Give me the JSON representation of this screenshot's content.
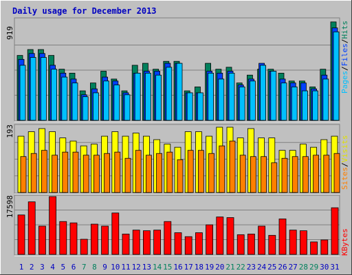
{
  "title": "Daily usage for December 2013",
  "colors": {
    "background": "#c0c0c0",
    "panel": "#c0c0c0",
    "gridline": "#808080",
    "title": "#0000c0",
    "hits": "#00805c",
    "files": "#0040ff",
    "pages": "#00c0ff",
    "visits": "#ffff00",
    "sites": "#ff8000",
    "kbytes": "#ff0000",
    "weekday_label": "#0000c0",
    "weekend_label": "#00805c"
  },
  "panels": {
    "hits_files_pages": {
      "max_label": "919",
      "legend": {
        "pages": "Pages",
        "sep1": "/",
        "files": "Files",
        "sep2": "/",
        "hits": "Hits"
      }
    },
    "visits_sites": {
      "max_label": "193",
      "legend": {
        "sites": "Sites",
        "sep": "/",
        "visits": "Visits"
      }
    },
    "kbytes": {
      "max_label": "17598",
      "legend": {
        "kbytes": "KBytes"
      }
    }
  },
  "chart_data": [
    {
      "type": "bar",
      "title": "Daily usage for December 2013",
      "categories": [
        "1",
        "2",
        "3",
        "4",
        "5",
        "6",
        "7",
        "8",
        "9",
        "10",
        "11",
        "12",
        "13",
        "14",
        "15",
        "16",
        "17",
        "18",
        "19",
        "20",
        "21",
        "22",
        "23",
        "24",
        "25",
        "26",
        "27",
        "28",
        "29",
        "30",
        "31"
      ],
      "weekend_days": [
        "7",
        "8",
        "14",
        "15",
        "21",
        "22",
        "28",
        "29"
      ],
      "ylim": [
        0,
        919
      ],
      "series": [
        {
          "name": "Hits",
          "values": [
            594,
            648,
            648,
            594,
            468,
            432,
            270,
            342,
            450,
            378,
            270,
            504,
            522,
            468,
            540,
            540,
            270,
            306,
            522,
            468,
            486,
            342,
            414,
            468,
            468,
            432,
            360,
            360,
            306,
            468,
            901
          ]
        },
        {
          "name": "Files",
          "values": [
            558,
            612,
            612,
            504,
            432,
            378,
            234,
            288,
            396,
            360,
            252,
            432,
            450,
            450,
            522,
            522,
            252,
            252,
            450,
            432,
            450,
            324,
            378,
            522,
            450,
            378,
            342,
            342,
            288,
            414,
            846
          ]
        },
        {
          "name": "Pages",
          "values": [
            504,
            576,
            576,
            468,
            396,
            342,
            216,
            252,
            360,
            324,
            234,
            432,
            432,
            414,
            486,
            522,
            252,
            252,
            432,
            378,
            432,
            306,
            360,
            504,
            450,
            342,
            306,
            270,
            270,
            378,
            810
          ]
        }
      ]
    },
    {
      "type": "bar",
      "categories": [
        "1",
        "2",
        "3",
        "4",
        "5",
        "6",
        "7",
        "8",
        "9",
        "10",
        "11",
        "12",
        "13",
        "14",
        "15",
        "16",
        "17",
        "18",
        "19",
        "20",
        "21",
        "22",
        "23",
        "24",
        "25",
        "26",
        "27",
        "28",
        "29",
        "30",
        "31"
      ],
      "ylim": [
        0,
        193
      ],
      "series": [
        {
          "name": "Visits",
          "values": [
            163,
            176,
            185,
            176,
            158,
            149,
            135,
            140,
            163,
            176,
            163,
            172,
            163,
            153,
            140,
            131,
            176,
            176,
            163,
            189,
            189,
            158,
            185,
            158,
            158,
            122,
            122,
            140,
            131,
            153,
            163
          ]
        },
        {
          "name": "Sites",
          "values": [
            104,
            113,
            122,
            108,
            117,
            117,
            108,
            108,
            113,
            117,
            99,
            122,
            108,
            113,
            117,
            95,
            122,
            122,
            113,
            135,
            149,
            108,
            104,
            104,
            86,
            99,
            104,
            104,
            108,
            108,
            113
          ]
        }
      ]
    },
    {
      "type": "bar",
      "categories": [
        "1",
        "2",
        "3",
        "4",
        "5",
        "6",
        "7",
        "8",
        "9",
        "10",
        "11",
        "12",
        "13",
        "14",
        "15",
        "16",
        "17",
        "18",
        "19",
        "20",
        "21",
        "22",
        "23",
        "24",
        "25",
        "26",
        "27",
        "28",
        "29",
        "30",
        "31"
      ],
      "ylim": [
        0,
        17598
      ],
      "series": [
        {
          "name": "KBytes",
          "values": [
            11730,
            15640,
            8410,
            17200,
            9780,
            9380,
            4500,
            9000,
            8410,
            12320,
            6060,
            7230,
            7040,
            7230,
            9780,
            6450,
            5280,
            6450,
            8800,
            11140,
            10950,
            5860,
            6060,
            8410,
            5670,
            10560,
            7230,
            7040,
            3710,
            4300,
            13880
          ]
        }
      ]
    }
  ]
}
